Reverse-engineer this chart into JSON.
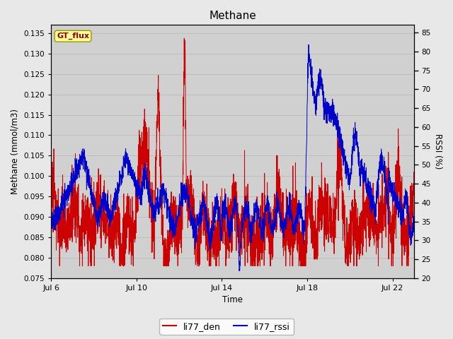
{
  "title": "Methane",
  "xlabel": "Time",
  "ylabel_left": "Methane (mmol/m3)",
  "ylabel_right": "RSSI (%)",
  "legend_label1": "li77_den",
  "legend_label2": "li77_rssi",
  "annotation_text": "GT_flux",
  "color_red": "#cc0000",
  "color_blue": "#0000cc",
  "annotation_bg": "#ffff99",
  "annotation_border": "#999900",
  "fig_bg": "#e8e8e8",
  "plot_bg": "#d0d0d0",
  "ylim_left": [
    0.075,
    0.137
  ],
  "ylim_right": [
    20,
    87
  ],
  "yticks_left": [
    0.075,
    0.08,
    0.085,
    0.09,
    0.095,
    0.1,
    0.105,
    0.11,
    0.115,
    0.12,
    0.125,
    0.13,
    0.135
  ],
  "yticks_right": [
    20,
    25,
    30,
    35,
    40,
    45,
    50,
    55,
    60,
    65,
    70,
    75,
    80,
    85
  ],
  "xtick_labels": [
    "Jul 6",
    "Jul 10",
    "Jul 14",
    "Jul 18",
    "Jul 22"
  ],
  "xtick_days": [
    0,
    4,
    8,
    12,
    16
  ]
}
